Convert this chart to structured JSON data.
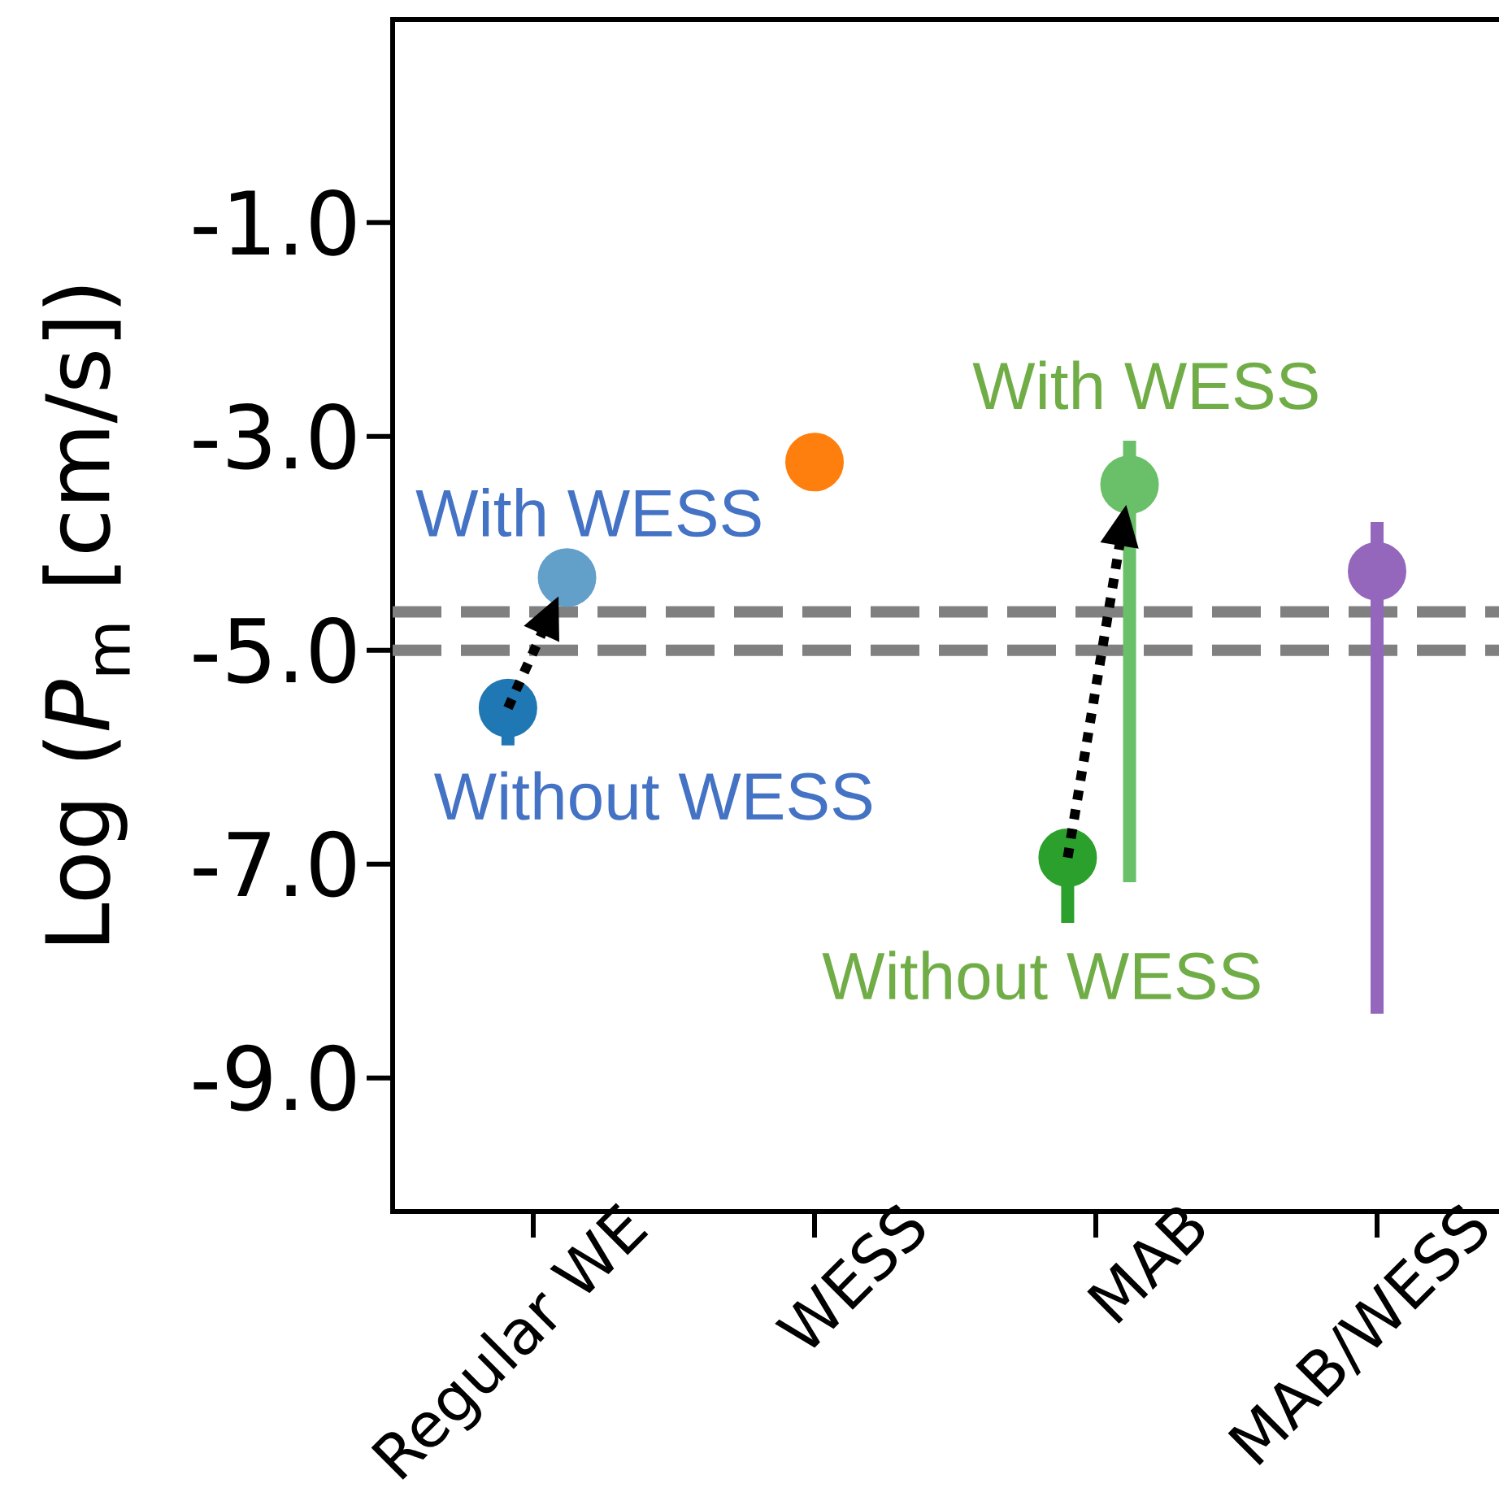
{
  "chart_data": {
    "type": "scatter",
    "ylabel": "Log (*P*$_{m}$ [cm/s])",
    "categories": [
      "Regular WE",
      "WESS",
      "MAB",
      "MAB/WESS"
    ],
    "ylim": [
      -10.25,
      0.9
    ],
    "yticks": [
      {
        "value": -1,
        "label": "-1.0"
      },
      {
        "value": -3,
        "label": "-3.0"
      },
      {
        "value": -5,
        "label": "-5.0"
      },
      {
        "value": -7,
        "label": "-7.0"
      },
      {
        "value": -9,
        "label": "-9.0"
      }
    ],
    "marker": "circle",
    "series": [
      {
        "values": [
          -5.54,
          null,
          null,
          null
        ],
        "errors": [
          [
            -5.89,
            -5.34
          ],
          null,
          null,
          null
        ],
        "color": "#1f77b4"
      },
      {
        "values": [
          -4.32,
          null,
          null,
          null
        ],
        "errors": [
          0.23,
          null,
          null,
          null
        ],
        "color": "#62a0ca"
      },
      {
        "values": [
          null,
          -3.24,
          null,
          null
        ],
        "color": "#ff7f0e"
      },
      {
        "values": [
          null,
          null,
          -6.94,
          null
        ],
        "errors": [
          null,
          null,
          [
            -7.55,
            -6.74
          ],
          null
        ],
        "color": "#2ca02c"
      },
      {
        "values": [
          null,
          null,
          -3.45,
          null
        ],
        "errors": [
          null,
          null,
          [
            -7.17,
            -3.04
          ],
          null
        ],
        "color": "#6abf69"
      },
      {
        "values": [
          null,
          null,
          null,
          -4.26
        ],
        "errors": [
          null,
          null,
          null,
          [
            -8.4,
            -3.8
          ]
        ],
        "color": "#9467bd"
      }
    ],
    "ref_lines": [
      {
        "axis": "y",
        "value": -4.64,
        "color": "#808080",
        "line_style": "dashed"
      },
      {
        "axis": "y",
        "value": -5.0,
        "color": "#808080",
        "line_style": "dashed"
      }
    ],
    "annotations": [
      "With WESS",
      {
        "text": "Without WESS",
        "x": "Regular WE",
        "y": -5.54
      },
      "With WESS",
      "Without WESS"
    ]
  }
}
